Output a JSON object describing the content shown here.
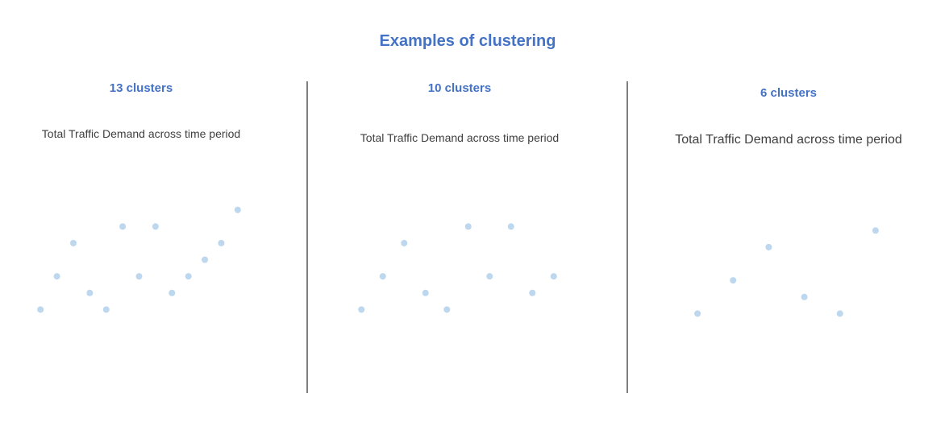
{
  "title": "Examples of clustering",
  "colors": {
    "title": "#4472c4",
    "point": "#bdd7ee",
    "divider": "#7f7f7f",
    "subtitle": "#404040"
  },
  "chart_data": [
    {
      "type": "scatter",
      "title": "13 clusters",
      "subtitle": "Total Traffic Demand across time period",
      "axes_visible": false,
      "grid": false,
      "point_color": "#bdd7ee",
      "x": [
        1,
        2,
        3,
        4,
        5,
        6,
        7,
        8,
        9,
        10,
        11,
        12,
        13
      ],
      "y": [
        1,
        3,
        5,
        2,
        1,
        6,
        3,
        6,
        2,
        3,
        4,
        5,
        7
      ],
      "xlim": [
        0.5,
        13.5
      ],
      "ylim": [
        0,
        8
      ]
    },
    {
      "type": "scatter",
      "title": "10 clusters",
      "subtitle": "Total Traffic Demand across time period",
      "axes_visible": false,
      "grid": false,
      "point_color": "#bdd7ee",
      "x": [
        1,
        2,
        3,
        4,
        5,
        6,
        7,
        8,
        9,
        10
      ],
      "y": [
        1,
        3,
        5,
        2,
        1,
        6,
        3,
        6,
        2,
        3
      ],
      "xlim": [
        0.5,
        10.5
      ],
      "ylim": [
        0,
        8
      ]
    },
    {
      "type": "scatter",
      "title": "6 clusters",
      "subtitle": "Total Traffic Demand across time period",
      "axes_visible": false,
      "grid": false,
      "point_color": "#bdd7ee",
      "x": [
        1,
        2,
        3,
        4,
        5,
        6
      ],
      "y": [
        1,
        3,
        5,
        2,
        1,
        6
      ],
      "xlim": [
        0.5,
        6.5
      ],
      "ylim": [
        0,
        8
      ]
    }
  ]
}
